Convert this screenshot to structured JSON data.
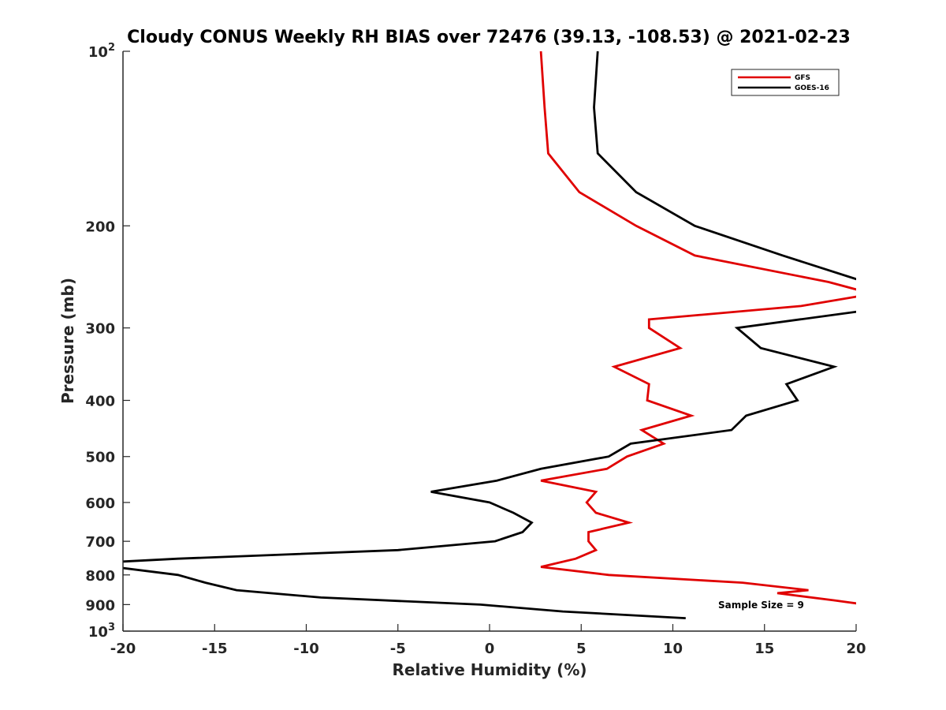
{
  "chart_data": {
    "type": "line",
    "title": "Cloudy CONUS Weekly RH BIAS over 72476 (39.13, -108.53) @ 2021-02-23",
    "xlabel": "Relative Humidity (%)",
    "ylabel": "Pressure (mb)",
    "xlim": [
      -20,
      20
    ],
    "ylim": [
      100,
      1000
    ],
    "y_scale": "log",
    "y_reversed": true,
    "x_ticks": [
      "-20",
      "-15",
      "-10",
      "-5",
      "0",
      "5",
      "10",
      "15",
      "20"
    ],
    "y_ticks": [
      {
        "value": 100,
        "base": "10",
        "exp": "2"
      },
      {
        "value": 200,
        "label": "200"
      },
      {
        "value": 300,
        "label": "300"
      },
      {
        "value": 400,
        "label": "400"
      },
      {
        "value": 500,
        "label": "500"
      },
      {
        "value": 600,
        "label": "600"
      },
      {
        "value": 700,
        "label": "700"
      },
      {
        "value": 800,
        "label": "800"
      },
      {
        "value": 900,
        "label": "900"
      },
      {
        "value": 1000,
        "base": "10",
        "exp": "3"
      }
    ],
    "grid": false,
    "legend_position": "top-right",
    "annotation": "Sample Size = 9",
    "series": [
      {
        "name": "GFS",
        "color": "#e00000",
        "points": [
          [
            2.8,
            100
          ],
          [
            3.0,
            125
          ],
          [
            3.2,
            150
          ],
          [
            4.9,
            175
          ],
          [
            8.0,
            200
          ],
          [
            11.2,
            225
          ],
          [
            18.5,
            250
          ],
          [
            20.5,
            260
          ],
          [
            20.0,
            265
          ],
          [
            17.0,
            275
          ],
          [
            8.7,
            290
          ],
          [
            8.7,
            300
          ],
          [
            10.4,
            325
          ],
          [
            6.8,
            350
          ],
          [
            8.7,
            375
          ],
          [
            8.6,
            400
          ],
          [
            11.0,
            425
          ],
          [
            8.3,
            450
          ],
          [
            9.5,
            475
          ],
          [
            7.5,
            500
          ],
          [
            6.4,
            525
          ],
          [
            2.8,
            550
          ],
          [
            5.8,
            575
          ],
          [
            5.3,
            600
          ],
          [
            5.8,
            625
          ],
          [
            7.6,
            650
          ],
          [
            5.4,
            675
          ],
          [
            5.4,
            700
          ],
          [
            5.8,
            725
          ],
          [
            4.7,
            750
          ],
          [
            2.8,
            775
          ],
          [
            6.5,
            800
          ],
          [
            13.8,
            825
          ],
          [
            17.4,
            850
          ],
          [
            15.7,
            860
          ],
          [
            18.8,
            885
          ],
          [
            20.5,
            900
          ]
        ]
      },
      {
        "name": "GOES-16",
        "color": "#000000",
        "points": [
          [
            5.9,
            100
          ],
          [
            5.7,
            125
          ],
          [
            5.9,
            150
          ],
          [
            8.0,
            175
          ],
          [
            11.2,
            200
          ],
          [
            16.0,
            225
          ],
          [
            20.5,
            250
          ],
          [
            20.5,
            280
          ],
          [
            13.5,
            300
          ],
          [
            14.8,
            325
          ],
          [
            18.8,
            350
          ],
          [
            16.2,
            375
          ],
          [
            16.8,
            400
          ],
          [
            14.0,
            425
          ],
          [
            13.2,
            450
          ],
          [
            7.7,
            475
          ],
          [
            6.5,
            500
          ],
          [
            2.8,
            525
          ],
          [
            0.4,
            550
          ],
          [
            -3.2,
            575
          ],
          [
            0.0,
            600
          ],
          [
            1.3,
            625
          ],
          [
            2.3,
            650
          ],
          [
            1.8,
            675
          ],
          [
            0.3,
            700
          ],
          [
            -5.0,
            725
          ],
          [
            -17.0,
            750
          ],
          [
            -20.5,
            760
          ],
          [
            -20.5,
            775
          ],
          [
            -17.0,
            800
          ],
          [
            -15.5,
            825
          ],
          [
            -13.8,
            850
          ],
          [
            -9.2,
            875
          ],
          [
            -0.5,
            900
          ],
          [
            4.0,
            925
          ],
          [
            10.7,
            950
          ]
        ]
      }
    ]
  },
  "legend": {
    "items": [
      {
        "label": "GFS",
        "color": "#e00000"
      },
      {
        "label": "GOES-16",
        "color": "#000000"
      }
    ]
  }
}
